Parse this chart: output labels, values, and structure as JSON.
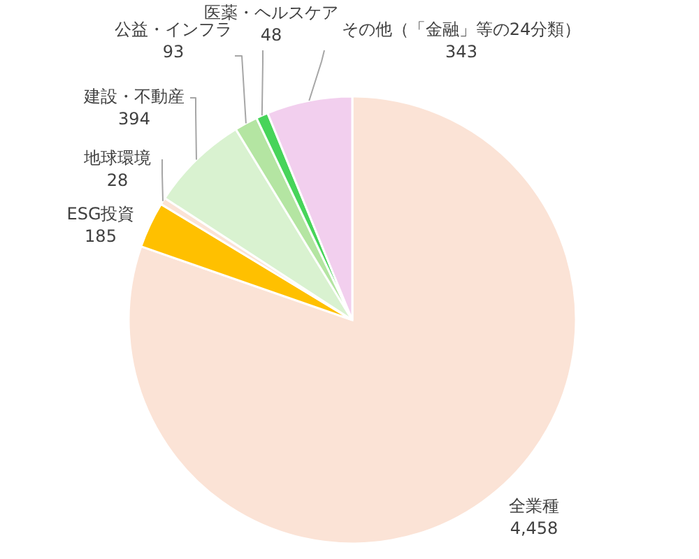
{
  "chart_data": {
    "type": "pie",
    "categories": [
      "全業種",
      "ESG投資",
      "地球環境",
      "建設・不動産",
      "公益・インフラ",
      "医薬・ヘルスケア",
      "その他（「金融」等の24分類）"
    ],
    "values": [
      4458,
      185,
      28,
      394,
      93,
      48,
      343
    ],
    "colors": [
      "#fbe3d6",
      "#ffc000",
      "#fbe3d6",
      "#d9f2d0",
      "#b4e5a2",
      "#47d45a",
      "#f2cfee"
    ],
    "value_labels": [
      "4,458",
      "185",
      "28",
      "394",
      "93",
      "48",
      "343"
    ]
  }
}
